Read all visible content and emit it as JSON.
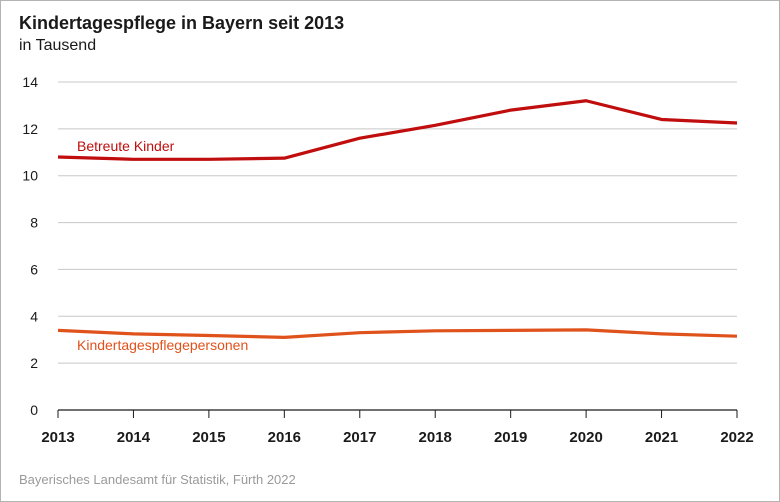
{
  "header": {
    "title": "Kindertagespflege in Bayern seit 2013",
    "subtitle": "in Tausend"
  },
  "footer": {
    "source": "Bayerisches Landesamt für Statistik, Fürth 2022"
  },
  "chart_data": {
    "type": "line",
    "title": "Kindertagespflege in Bayern seit 2013",
    "subtitle": "in Tausend",
    "xlabel": "",
    "ylabel": "",
    "x": [
      "2013",
      "2014",
      "2015",
      "2016",
      "2017",
      "2018",
      "2019",
      "2020",
      "2021",
      "2022"
    ],
    "ylim": [
      0,
      14
    ],
    "yticks": [
      0,
      2,
      4,
      6,
      8,
      10,
      12,
      14
    ],
    "grid": true,
    "legend": "inline",
    "series": [
      {
        "name": "Betreute Kinder",
        "color": "#c00d0d",
        "values": [
          10.8,
          10.7,
          10.7,
          10.75,
          11.6,
          12.15,
          12.8,
          13.2,
          12.4,
          12.25
        ]
      },
      {
        "name": "Kindertagespflegepersonen",
        "color": "#e0521b",
        "values": [
          3.4,
          3.25,
          3.18,
          3.1,
          3.3,
          3.38,
          3.4,
          3.42,
          3.25,
          3.15
        ]
      }
    ]
  }
}
